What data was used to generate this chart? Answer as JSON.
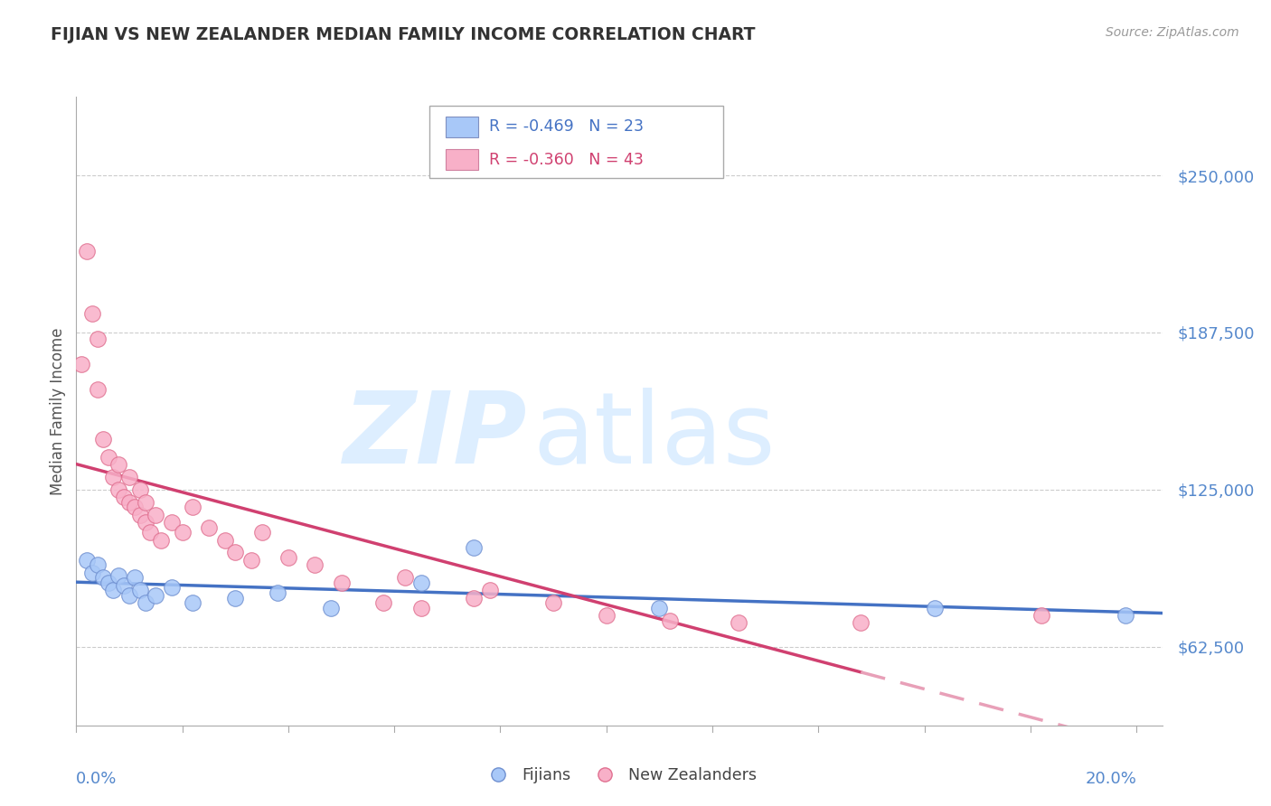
{
  "title": "FIJIAN VS NEW ZEALANDER MEDIAN FAMILY INCOME CORRELATION CHART",
  "source": "Source: ZipAtlas.com",
  "ylabel": "Median Family Income",
  "y_ticks": [
    62500,
    125000,
    187500,
    250000
  ],
  "y_labels": [
    "$62,500",
    "$125,000",
    "$187,500",
    "$250,000"
  ],
  "xlim": [
    0.0,
    0.205
  ],
  "ylim": [
    31250,
    281250
  ],
  "fijian_color": "#a8c8f8",
  "nz_color": "#f8b0c8",
  "fijian_edge_color": "#7090d0",
  "nz_edge_color": "#e07090",
  "fijian_line_color": "#4472c4",
  "nz_line_solid_color": "#d04070",
  "nz_line_dashed_color": "#e8a0b8",
  "tick_label_color": "#5588cc",
  "title_color": "#333333",
  "source_color": "#999999",
  "legend_fijian_text_color": "#4472c4",
  "legend_nz_text_color": "#d04070",
  "watermark_color": "#ddeeff",
  "fijian_x": [
    0.002,
    0.003,
    0.004,
    0.005,
    0.006,
    0.007,
    0.008,
    0.009,
    0.01,
    0.011,
    0.012,
    0.013,
    0.015,
    0.018,
    0.022,
    0.03,
    0.038,
    0.048,
    0.065,
    0.075,
    0.11,
    0.162,
    0.198
  ],
  "fijian_y": [
    97000,
    92000,
    95000,
    90000,
    88000,
    85000,
    91000,
    87000,
    83000,
    90000,
    85000,
    80000,
    83000,
    86000,
    80000,
    82000,
    84000,
    78000,
    88000,
    102000,
    78000,
    78000,
    75000
  ],
  "nz_x": [
    0.001,
    0.002,
    0.003,
    0.004,
    0.004,
    0.005,
    0.006,
    0.007,
    0.008,
    0.008,
    0.009,
    0.01,
    0.01,
    0.011,
    0.012,
    0.012,
    0.013,
    0.013,
    0.014,
    0.015,
    0.016,
    0.018,
    0.02,
    0.022,
    0.025,
    0.028,
    0.03,
    0.033,
    0.035,
    0.04,
    0.045,
    0.05,
    0.058,
    0.062,
    0.065,
    0.075,
    0.078,
    0.09,
    0.1,
    0.112,
    0.125,
    0.148,
    0.182
  ],
  "nz_y": [
    175000,
    220000,
    195000,
    185000,
    165000,
    145000,
    138000,
    130000,
    125000,
    135000,
    122000,
    120000,
    130000,
    118000,
    115000,
    125000,
    112000,
    120000,
    108000,
    115000,
    105000,
    112000,
    108000,
    118000,
    110000,
    105000,
    100000,
    97000,
    108000,
    98000,
    95000,
    88000,
    80000,
    90000,
    78000,
    82000,
    85000,
    80000,
    75000,
    73000,
    72000,
    72000,
    75000
  ],
  "nz_line_solid_end": 0.148,
  "background_color": "#ffffff"
}
